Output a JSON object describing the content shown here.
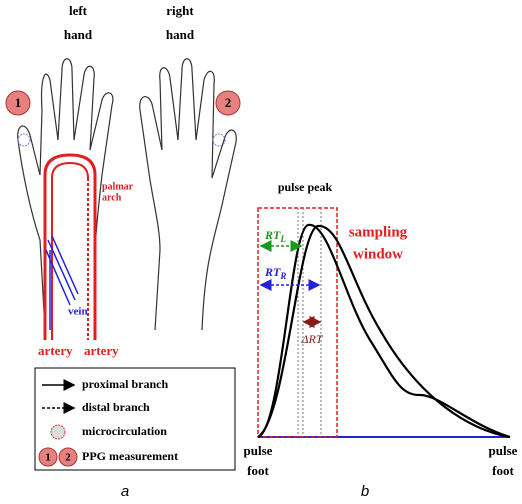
{
  "panel_a": {
    "left_hand": [
      "left",
      "hand"
    ],
    "right_hand": [
      "right",
      "hand"
    ],
    "marker_1": "1",
    "marker_2": "2",
    "palmar_arch": [
      "palmar",
      "arch"
    ],
    "vein": "vein",
    "artery_left": "artery",
    "artery_right": "artery",
    "legend": {
      "proximal": "proximal branch",
      "distal": "distal branch",
      "microcirculation": "microcirculation",
      "ppg_1": "1",
      "ppg_2": "2",
      "ppg": "PPG measurement"
    },
    "caption": "a"
  },
  "panel_b": {
    "pulse_peak": "pulse peak",
    "sampling_window": [
      "sampling",
      "window"
    ],
    "rt_l": {
      "main": "RT",
      "sub": "L"
    },
    "rt_r": {
      "main": "RT",
      "sub": "R"
    },
    "delta_rt": "ΔRT",
    "pulse_foot_left": [
      "pulse",
      "foot"
    ],
    "pulse_foot_right": [
      "pulse",
      "foot"
    ],
    "caption": "b"
  }
}
